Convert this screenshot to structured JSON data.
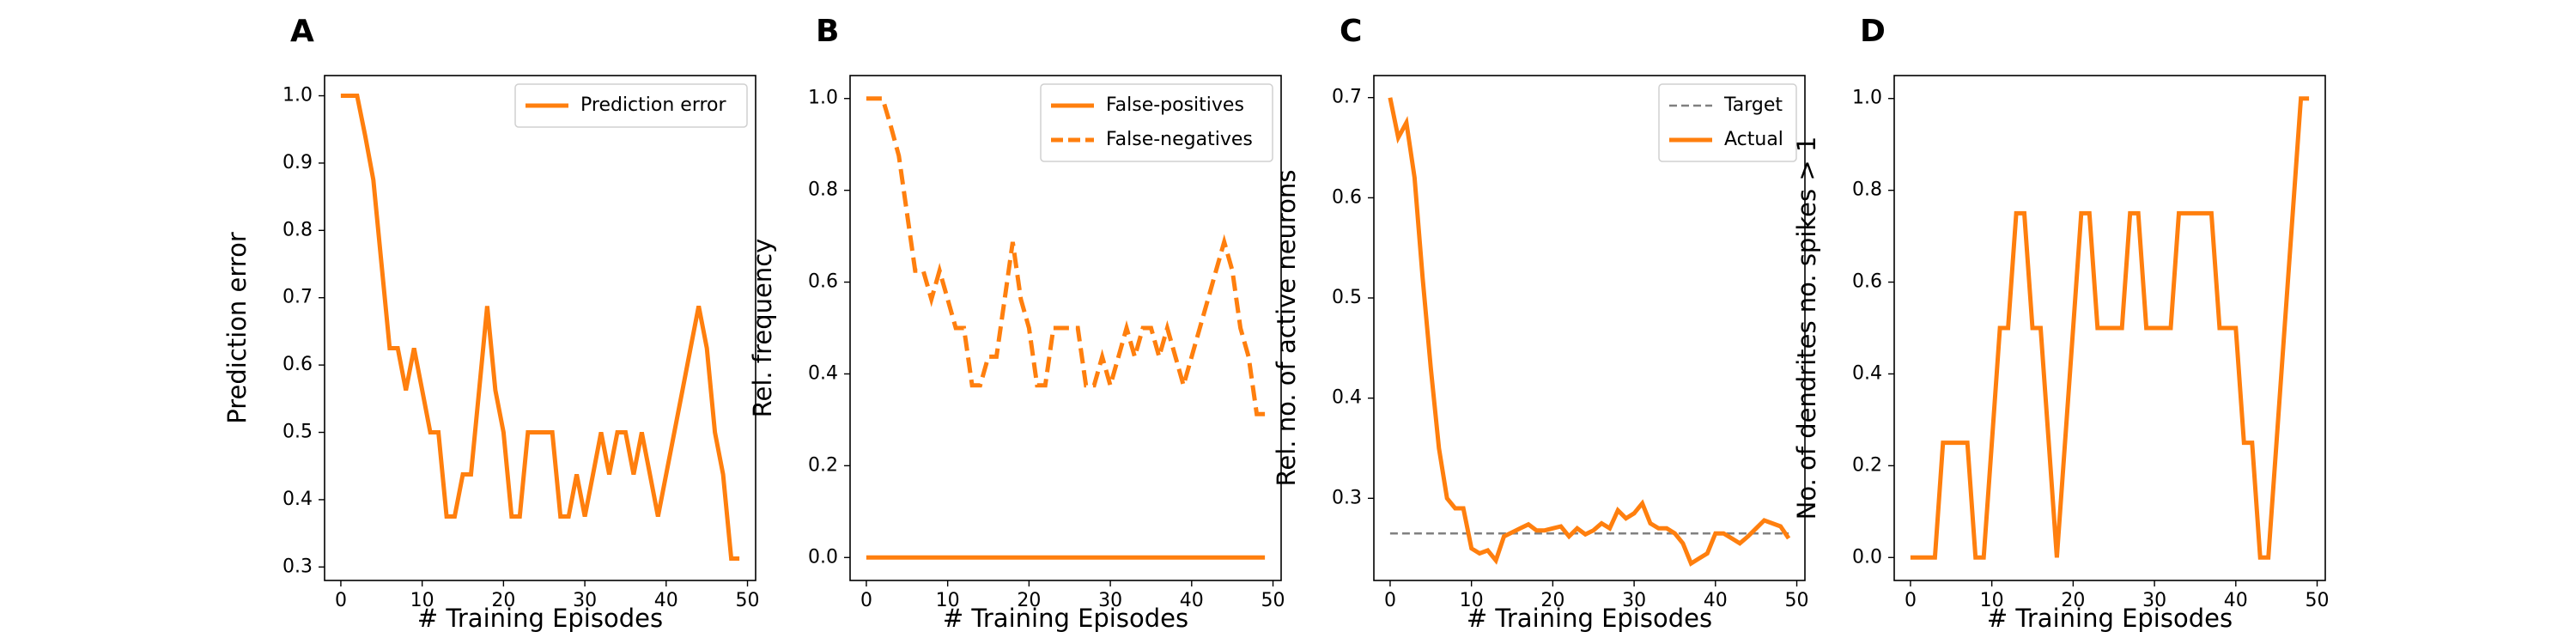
{
  "colors": {
    "orange": "#ff7f0e",
    "target_gray": "#808080",
    "frame": "#000000"
  },
  "chart_data": [
    {
      "type": "line",
      "panel_label": "A",
      "xlabel": "# Training Episodes",
      "ylabel": "Prediction error",
      "xlim": [
        -2,
        51
      ],
      "ylim": [
        0.28,
        1.03
      ],
      "xticks": [
        0,
        10,
        20,
        30,
        40,
        50
      ],
      "yticks": [
        0.3,
        0.4,
        0.5,
        0.6,
        0.7,
        0.8,
        0.9,
        1.0
      ],
      "ytick_labels": [
        "0.3",
        "0.4",
        "0.5",
        "0.6",
        "0.7",
        "0.8",
        "0.9",
        "1.0"
      ],
      "legend": "top-right",
      "grid": false,
      "series": [
        {
          "name": "Prediction error",
          "color": "#ff7f0e",
          "dashed": false,
          "x": [
            0,
            1,
            2,
            3,
            4,
            5,
            6,
            7,
            8,
            9,
            10,
            11,
            12,
            13,
            14,
            15,
            16,
            17,
            18,
            19,
            20,
            21,
            22,
            23,
            24,
            25,
            26,
            27,
            28,
            29,
            30,
            31,
            32,
            33,
            34,
            35,
            36,
            37,
            38,
            39,
            40,
            41,
            42,
            43,
            44,
            45,
            46,
            47,
            48,
            49
          ],
          "y": [
            1.0,
            1.0,
            1.0,
            0.94,
            0.875,
            0.75,
            0.625,
            0.625,
            0.5625,
            0.625,
            0.5625,
            0.5,
            0.5,
            0.375,
            0.375,
            0.4375,
            0.4375,
            0.5625,
            0.6875,
            0.5625,
            0.5,
            0.375,
            0.375,
            0.5,
            0.5,
            0.5,
            0.5,
            0.375,
            0.375,
            0.4375,
            0.375,
            0.4375,
            0.5,
            0.4375,
            0.5,
            0.5,
            0.4375,
            0.5,
            0.4375,
            0.375,
            0.4375,
            0.5,
            0.5625,
            0.625,
            0.6875,
            0.625,
            0.5,
            0.4375,
            0.3125,
            0.3125
          ]
        }
      ]
    },
    {
      "type": "line",
      "panel_label": "B",
      "xlabel": "# Training Episodes",
      "ylabel": "Rel. frequency",
      "xlim": [
        -2,
        51
      ],
      "ylim": [
        -0.05,
        1.05
      ],
      "xticks": [
        0,
        10,
        20,
        30,
        40,
        50
      ],
      "yticks": [
        0.0,
        0.2,
        0.4,
        0.6,
        0.8,
        1.0
      ],
      "ytick_labels": [
        "0.0",
        "0.2",
        "0.4",
        "0.6",
        "0.8",
        "1.0"
      ],
      "legend": "top-right",
      "grid": false,
      "series": [
        {
          "name": "False-positives",
          "color": "#ff7f0e",
          "dashed": false,
          "x": [
            0,
            49
          ],
          "y": [
            0.0,
            0.0
          ]
        },
        {
          "name": "False-negatives",
          "color": "#ff7f0e",
          "dashed": true,
          "x": [
            0,
            1,
            2,
            3,
            4,
            5,
            6,
            7,
            8,
            9,
            10,
            11,
            12,
            13,
            14,
            15,
            16,
            17,
            18,
            19,
            20,
            21,
            22,
            23,
            24,
            25,
            26,
            27,
            28,
            29,
            30,
            31,
            32,
            33,
            34,
            35,
            36,
            37,
            38,
            39,
            40,
            41,
            42,
            43,
            44,
            45,
            46,
            47,
            48,
            49
          ],
          "y": [
            1.0,
            1.0,
            1.0,
            0.94,
            0.875,
            0.75,
            0.625,
            0.625,
            0.5625,
            0.625,
            0.5625,
            0.5,
            0.5,
            0.375,
            0.375,
            0.4375,
            0.4375,
            0.5625,
            0.6875,
            0.5625,
            0.5,
            0.375,
            0.375,
            0.5,
            0.5,
            0.5,
            0.5,
            0.375,
            0.375,
            0.4375,
            0.375,
            0.4375,
            0.5,
            0.4375,
            0.5,
            0.5,
            0.4375,
            0.5,
            0.4375,
            0.375,
            0.4375,
            0.5,
            0.5625,
            0.625,
            0.6875,
            0.625,
            0.5,
            0.4375,
            0.3125,
            0.3125
          ]
        }
      ]
    },
    {
      "type": "line",
      "panel_label": "C",
      "xlabel": "# Training Episodes",
      "ylabel": "Rel. no. of active neurons",
      "xlim": [
        -2,
        51
      ],
      "ylim": [
        0.218,
        0.722
      ],
      "xticks": [
        0,
        10,
        20,
        30,
        40,
        50
      ],
      "yticks": [
        0.3,
        0.4,
        0.5,
        0.6,
        0.7
      ],
      "ytick_labels": [
        "0.3",
        "0.4",
        "0.5",
        "0.6",
        "0.7"
      ],
      "legend": "top-right",
      "grid": false,
      "series": [
        {
          "name": "Target",
          "color": "#808080",
          "dashed": true,
          "x": [
            0,
            49
          ],
          "y": [
            0.265,
            0.265
          ]
        },
        {
          "name": "Actual",
          "color": "#ff7f0e",
          "dashed": false,
          "x": [
            0,
            1,
            2,
            3,
            4,
            5,
            6,
            7,
            8,
            9,
            10,
            11,
            12,
            13,
            14,
            15,
            16,
            17,
            18,
            19,
            20,
            21,
            22,
            23,
            24,
            25,
            26,
            27,
            28,
            29,
            30,
            31,
            32,
            33,
            34,
            35,
            36,
            37,
            38,
            39,
            40,
            41,
            42,
            43,
            44,
            45,
            46,
            47,
            48,
            49
          ],
          "y": [
            0.7,
            0.66,
            0.675,
            0.62,
            0.52,
            0.43,
            0.35,
            0.3,
            0.29,
            0.29,
            0.25,
            0.245,
            0.248,
            0.238,
            0.262,
            0.266,
            0.27,
            0.274,
            0.268,
            0.268,
            0.27,
            0.272,
            0.262,
            0.27,
            0.264,
            0.268,
            0.275,
            0.27,
            0.288,
            0.28,
            0.285,
            0.295,
            0.275,
            0.27,
            0.27,
            0.265,
            0.255,
            0.235,
            0.24,
            0.245,
            0.265,
            0.265,
            0.26,
            0.255,
            0.262,
            0.27,
            0.278,
            0.275,
            0.272,
            0.26
          ]
        }
      ]
    },
    {
      "type": "line",
      "panel_label": "D",
      "xlabel": "# Training Episodes",
      "ylabel": "No. of dendrites no. spikes > 1",
      "xlim": [
        -2,
        51
      ],
      "ylim": [
        -0.05,
        1.05
      ],
      "xticks": [
        0,
        10,
        20,
        30,
        40,
        50
      ],
      "yticks": [
        0.0,
        0.2,
        0.4,
        0.6,
        0.8,
        1.0
      ],
      "ytick_labels": [
        "0.0",
        "0.2",
        "0.4",
        "0.6",
        "0.8",
        "1.0"
      ],
      "grid": false,
      "series": [
        {
          "color": "#ff7f0e",
          "dashed": false,
          "x": [
            0,
            1,
            2,
            3,
            4,
            5,
            6,
            7,
            8,
            9,
            10,
            11,
            12,
            13,
            14,
            15,
            16,
            17,
            18,
            19,
            20,
            21,
            22,
            23,
            24,
            25,
            26,
            27,
            28,
            29,
            30,
            31,
            32,
            33,
            34,
            35,
            36,
            37,
            38,
            39,
            40,
            41,
            42,
            43,
            44,
            45,
            46,
            47,
            48,
            49
          ],
          "y": [
            0,
            0,
            0,
            0,
            0.25,
            0.25,
            0.25,
            0.25,
            0,
            0,
            0.25,
            0.5,
            0.5,
            0.75,
            0.75,
            0.5,
            0.5,
            0.25,
            0,
            0.25,
            0.5,
            0.75,
            0.75,
            0.5,
            0.5,
            0.5,
            0.5,
            0.75,
            0.75,
            0.5,
            0.5,
            0.5,
            0.5,
            0.75,
            0.75,
            0.75,
            0.75,
            0.75,
            0.5,
            0.5,
            0.5,
            0.25,
            0.25,
            0,
            0,
            0.25,
            0.5,
            0.75,
            1.0,
            1.0
          ]
        }
      ]
    }
  ]
}
